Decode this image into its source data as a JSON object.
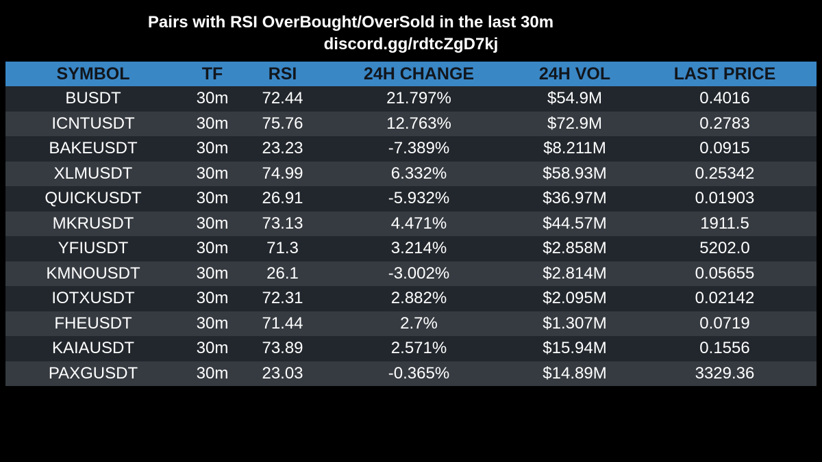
{
  "title": "Pairs with RSI OverBought/OverSold in the last 30m",
  "subtitle": "discord.gg/rdtcZgD7kj",
  "colors": {
    "header_bg": "#3a87c6",
    "row_dark": "#22272d",
    "row_light": "#363b41",
    "background": "#000000"
  },
  "table": {
    "headers": [
      "SYMBOL",
      "TF",
      "RSI",
      "24H CHANGE",
      "24H VOL",
      "LAST PRICE"
    ],
    "rows": [
      [
        "BUSDT",
        "30m",
        "72.44",
        "21.797%",
        "$54.9M",
        "0.4016"
      ],
      [
        "ICNTUSDT",
        "30m",
        "75.76",
        "12.763%",
        "$72.9M",
        "0.2783"
      ],
      [
        "BAKEUSDT",
        "30m",
        "23.23",
        "-7.389%",
        "$8.211M",
        "0.0915"
      ],
      [
        "XLMUSDT",
        "30m",
        "74.99",
        "6.332%",
        "$58.93M",
        "0.25342"
      ],
      [
        "QUICKUSDT",
        "30m",
        "26.91",
        "-5.932%",
        "$36.97M",
        "0.01903"
      ],
      [
        "MKRUSDT",
        "30m",
        "73.13",
        "4.471%",
        "$44.57M",
        "1911.5"
      ],
      [
        "YFIUSDT",
        "30m",
        "71.3",
        "3.214%",
        "$2.858M",
        "5202.0"
      ],
      [
        "KMNOUSDT",
        "30m",
        "26.1",
        "-3.002%",
        "$2.814M",
        "0.05655"
      ],
      [
        "IOTXUSDT",
        "30m",
        "72.31",
        "2.882%",
        "$2.095M",
        "0.02142"
      ],
      [
        "FHEUSDT",
        "30m",
        "71.44",
        "2.7%",
        "$1.307M",
        "0.0719"
      ],
      [
        "KAIAUSDT",
        "30m",
        "73.89",
        "2.571%",
        "$15.94M",
        "0.1556"
      ],
      [
        "PAXGUSDT",
        "30m",
        "23.03",
        "-0.365%",
        "$14.89M",
        "3329.36"
      ]
    ]
  }
}
